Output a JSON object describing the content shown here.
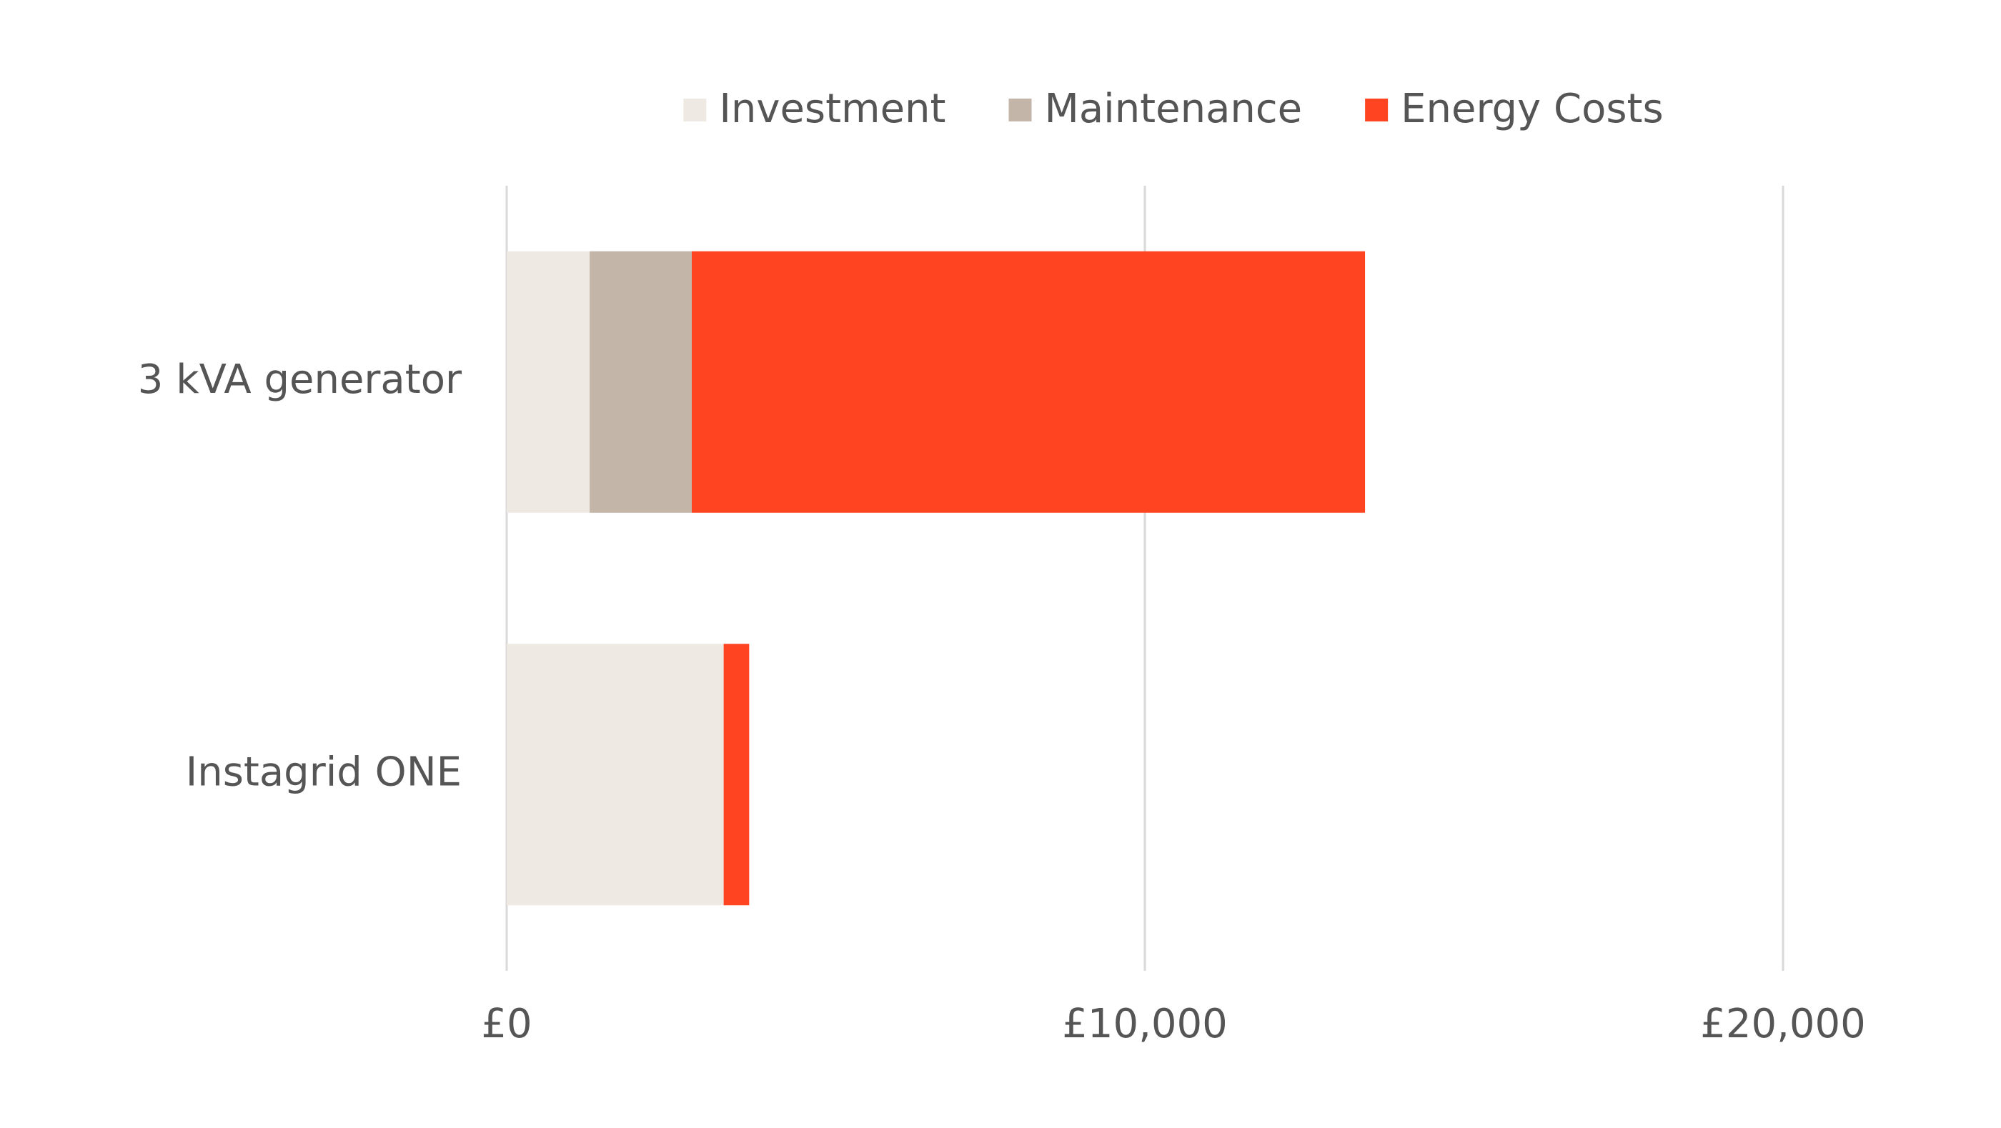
{
  "chart_data": {
    "type": "stacked-bar-horizontal",
    "categories": [
      "3 kVA generator",
      "Instagrid ONE"
    ],
    "series": [
      {
        "name": "Investment",
        "color": "#eee9e3",
        "values": [
          1300,
          3400
        ]
      },
      {
        "name": "Maintenance",
        "color": "#c4b5a9",
        "values": [
          1600,
          0
        ]
      },
      {
        "name": "Energy Costs",
        "color": "#ff4422",
        "values": [
          10550,
          400
        ]
      }
    ],
    "xlim": [
      0,
      20000
    ],
    "xticks": [
      {
        "value": 0,
        "label": "£0"
      },
      {
        "value": 10000,
        "label": "£10,000"
      },
      {
        "value": 20000,
        "label": "£20,000"
      }
    ],
    "grid": true,
    "legend": "top"
  }
}
